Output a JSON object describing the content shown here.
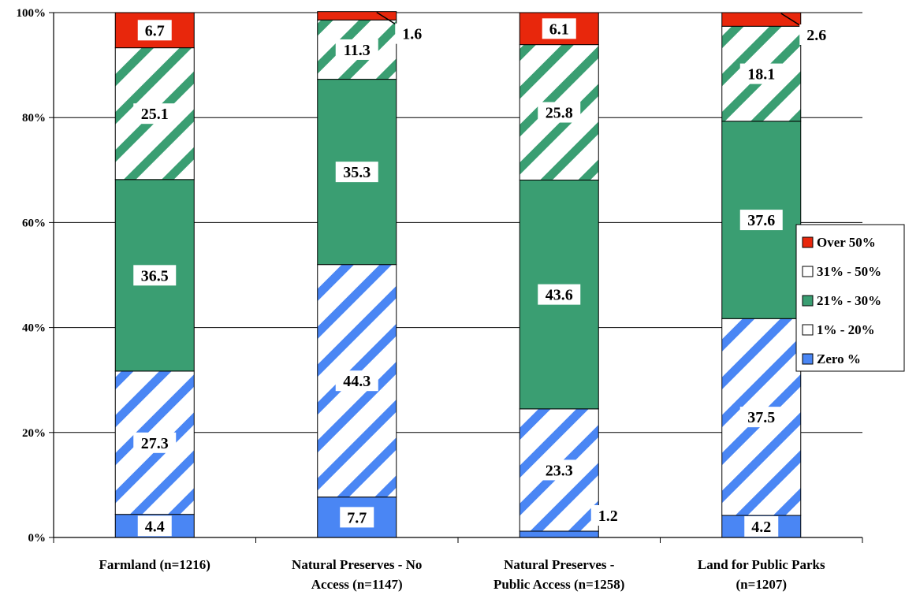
{
  "chart_data": {
    "type": "bar",
    "stacked": true,
    "categories": [
      [
        "Farmland (n=1216)"
      ],
      [
        "Natural Preserves - No",
        "Access (n=1147)"
      ],
      [
        "Natural Preserves -",
        "Public Access (n=1258)"
      ],
      [
        "Land for Public Parks",
        "(n=1207)"
      ]
    ],
    "series": [
      {
        "name": "Zero %",
        "values": [
          4.4,
          7.7,
          1.2,
          4.2
        ],
        "color": "#4a86f4",
        "pattern": "solid"
      },
      {
        "name": "1% - 20%",
        "values": [
          27.3,
          44.3,
          23.3,
          37.5
        ],
        "color": "#4a86f4",
        "pattern": "hatch"
      },
      {
        "name": "21% - 30%",
        "values": [
          36.5,
          35.3,
          43.6,
          37.6
        ],
        "color": "#3a9e72",
        "pattern": "solid"
      },
      {
        "name": "31% - 50%",
        "values": [
          25.1,
          11.3,
          25.8,
          18.1
        ],
        "color": "#3a9e72",
        "pattern": "hatch"
      },
      {
        "name": "Over 50%",
        "values": [
          6.7,
          1.6,
          6.1,
          2.6
        ],
        "color": "#e8270c",
        "pattern": "solid"
      }
    ],
    "yticks": [
      "0%",
      "20%",
      "40%",
      "60%",
      "80%",
      "100%"
    ],
    "ylim": [
      0,
      100
    ],
    "grid": true,
    "legend_position": "right",
    "legend_order": [
      "Over 50%",
      "31% - 50%",
      "21% - 30%",
      "1% - 20%",
      "Zero %"
    ]
  }
}
